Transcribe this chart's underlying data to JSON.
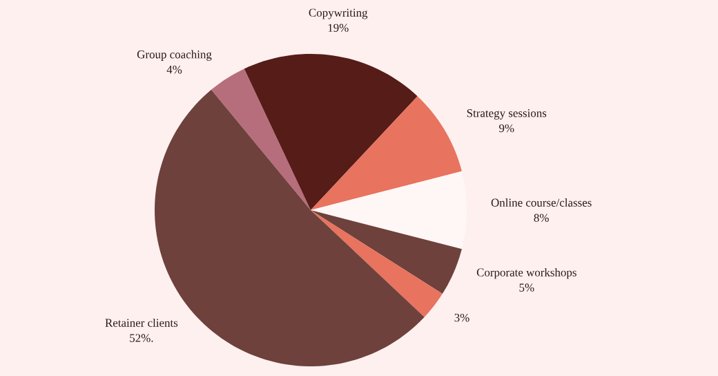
{
  "chart_data": {
    "type": "pie",
    "categories": [
      "Group coaching",
      "Copywriting",
      "Strategy sessions",
      "Online course/classes",
      "Corporate workshops",
      null,
      "Retainer clients"
    ],
    "values": [
      4,
      19,
      9,
      8,
      5,
      3,
      52
    ],
    "value_labels": [
      "4%",
      "19%",
      "9%",
      "8%",
      "5%",
      "3%",
      "52%."
    ],
    "colors": [
      "#b76e7c",
      "#561c18",
      "#e8735e",
      "#fff7f6",
      "#6e413c",
      "#e8735e",
      "#6e413c"
    ]
  }
}
